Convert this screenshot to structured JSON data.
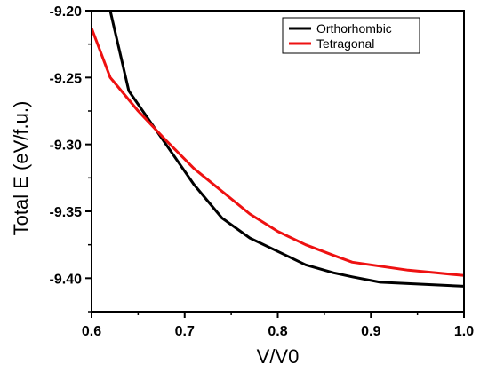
{
  "chart_data": {
    "type": "line",
    "title": "",
    "xlabel": "V/V0",
    "ylabel": "Total E (eV/f.u.)",
    "xlim": [
      0.6,
      1.0
    ],
    "ylim": [
      -9.425,
      -9.2
    ],
    "x_ticks": [
      0.6,
      0.7,
      0.8,
      0.9,
      1.0
    ],
    "x_tick_labels": [
      "0.6",
      "0.7",
      "0.8",
      "0.9",
      "1.0"
    ],
    "y_ticks": [
      -9.2,
      -9.25,
      -9.3,
      -9.35,
      -9.4
    ],
    "y_tick_labels": [
      "-9.20",
      "-9.25",
      "-9.30",
      "-9.35",
      "-9.40"
    ],
    "grid": false,
    "legend_position": "top-right",
    "series": [
      {
        "name": "Orthorhombic",
        "color": "#000000",
        "x": [
          0.62,
          0.64,
          0.68,
          0.71,
          0.74,
          0.77,
          0.8,
          0.83,
          0.86,
          0.88,
          0.91,
          0.94,
          0.97,
          1.0
        ],
        "y": [
          -9.2,
          -9.26,
          -9.3,
          -9.33,
          -9.355,
          -9.37,
          -9.38,
          -9.39,
          -9.396,
          -9.399,
          -9.403,
          -9.404,
          -9.405,
          -9.406
        ]
      },
      {
        "name": "Tetragonal",
        "color": "#ee1111",
        "x": [
          0.6,
          0.62,
          0.65,
          0.68,
          0.71,
          0.74,
          0.77,
          0.8,
          0.83,
          0.86,
          0.88,
          0.91,
          0.94,
          0.97,
          1.0
        ],
        "y": [
          -9.213,
          -9.25,
          -9.275,
          -9.297,
          -9.318,
          -9.335,
          -9.352,
          -9.365,
          -9.375,
          -9.383,
          -9.388,
          -9.391,
          -9.394,
          -9.396,
          -9.398
        ]
      }
    ]
  }
}
